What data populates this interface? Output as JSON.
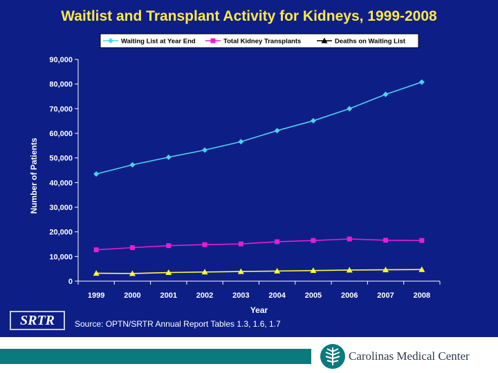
{
  "chart_data": {
    "type": "line",
    "title": "Waitlist and Transplant Activity for Kidneys, 1999-2008",
    "xlabel": "Year",
    "ylabel": "Number of Patients",
    "categories": [
      "1999",
      "2000",
      "2001",
      "2002",
      "2003",
      "2004",
      "2005",
      "2006",
      "2007",
      "2008"
    ],
    "ylim": [
      0,
      90000
    ],
    "yticks": [
      0,
      10000,
      20000,
      30000,
      40000,
      50000,
      60000,
      70000,
      80000,
      90000
    ],
    "ytick_labels": [
      "0",
      "10,000",
      "20,000",
      "30,000",
      "40,000",
      "50,000",
      "60,000",
      "70,000",
      "80,000",
      "90,000"
    ],
    "legend_position": "top",
    "series": [
      {
        "name": "Waiting List at Year End",
        "color": "#4fd2ec",
        "marker": "diamond",
        "values": [
          43500,
          47200,
          50300,
          53200,
          56600,
          61100,
          65100,
          70000,
          75800,
          80800
        ]
      },
      {
        "name": "Total Kidney Transplants",
        "color": "#e81cd7",
        "marker": "square",
        "values": [
          12700,
          13600,
          14400,
          14800,
          15100,
          16000,
          16500,
          17100,
          16600,
          16500
        ]
      },
      {
        "name": "Deaths on Waiting List",
        "color": "#ffff33",
        "marker": "triangle",
        "values": [
          3200,
          3100,
          3500,
          3700,
          3900,
          4100,
          4300,
          4500,
          4600,
          4700
        ]
      }
    ]
  },
  "source_text": "Source:  OPTN/SRTR Annual Report Tables 1.3, 1.6, 1.7",
  "srtr_logo": "SRTR",
  "footer": {
    "org_name": "Carolinas Medical Center"
  },
  "colors": {
    "background": "#0d1f86",
    "title": "#ffe84a",
    "axis_text": "#ffffff",
    "footer_bar": "#0a7a7e"
  }
}
